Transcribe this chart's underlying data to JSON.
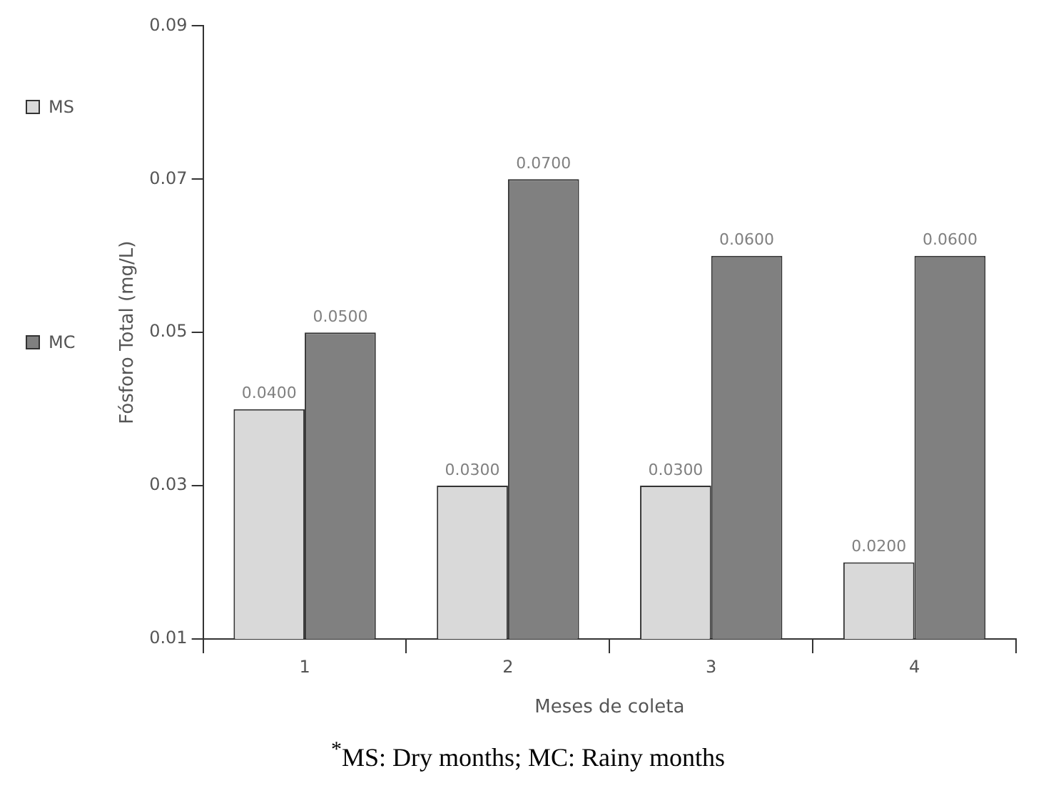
{
  "chart_data": {
    "type": "bar",
    "xlabel": "Meses de coleta",
    "ylabel": "Fósforo Total (mg/L)",
    "categories": [
      "1",
      "2",
      "3",
      "4"
    ],
    "series": [
      {
        "name": "MS",
        "color": "#d9d9d9",
        "values": [
          0.04,
          0.03,
          0.03,
          0.02
        ],
        "value_labels": [
          "0.0400",
          "0.0300",
          "0.0300",
          "0.0200"
        ]
      },
      {
        "name": "MC",
        "color": "#808080",
        "values": [
          0.05,
          0.07,
          0.06,
          0.06
        ],
        "value_labels": [
          "0.0500",
          "0.0700",
          "0.0600",
          "0.0600"
        ]
      }
    ],
    "ylim": [
      0.01,
      0.09
    ],
    "yticks": [
      0.01,
      0.03,
      0.05,
      0.07,
      0.09
    ],
    "grid": false,
    "legend": "left",
    "annotations": [
      "$^{*}$MS: Dry months; MC: Rainy months"
    ]
  }
}
